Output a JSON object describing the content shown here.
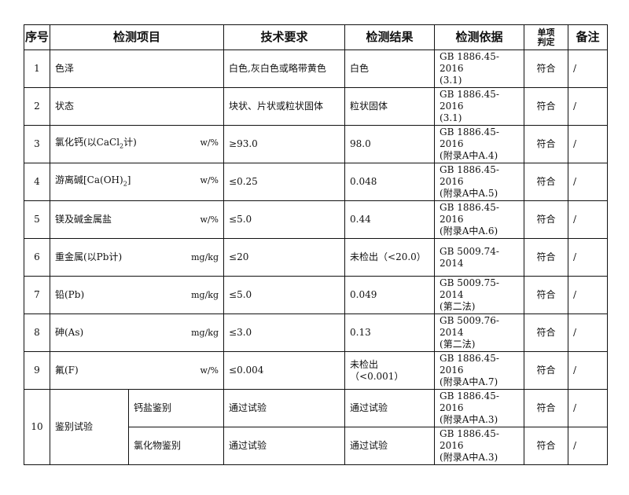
{
  "headers": {
    "no": "序号",
    "item": "检测项目",
    "requirement": "技术要求",
    "result": "检测结果",
    "basis": "检测依据",
    "judgement_l1": "单项",
    "judgement_l2": "判定",
    "remark": "备注"
  },
  "rows": [
    {
      "no": "1",
      "item": {
        "pre": "色泽",
        "sub": "",
        "post": ""
      },
      "unit": "",
      "requirement": "白色,灰白色或略带黄色",
      "result": "白色",
      "basis_l1": "GB 1886.45-2016",
      "basis_l2": "(3.1)",
      "judgement": "符合",
      "remark": "/"
    },
    {
      "no": "2",
      "item": {
        "pre": "状态",
        "sub": "",
        "post": ""
      },
      "unit": "",
      "requirement": "块状、片状或粒状固体",
      "result": "粒状固体",
      "basis_l1": "GB 1886.45-2016",
      "basis_l2": "(3.1)",
      "judgement": "符合",
      "remark": "/"
    },
    {
      "no": "3",
      "item": {
        "pre": "氯化钙(以CaCl",
        "sub": "2",
        "post": "计)"
      },
      "unit": "w/%",
      "requirement": "≥93.0",
      "result": "98.0",
      "basis_l1": "GB 1886.45-2016",
      "basis_l2": "(附录A中A.4)",
      "judgement": "符合",
      "remark": "/"
    },
    {
      "no": "4",
      "item": {
        "pre": "游离碱[Ca(OH)",
        "sub": "2",
        "post": "]"
      },
      "unit": "w/%",
      "requirement": "≤0.25",
      "result": "0.048",
      "basis_l1": "GB 1886.45-2016",
      "basis_l2": "(附录A中A.5)",
      "judgement": "符合",
      "remark": "/"
    },
    {
      "no": "5",
      "item": {
        "pre": "镁及碱金属盐",
        "sub": "",
        "post": ""
      },
      "unit": "w/%",
      "requirement": "≤5.0",
      "result": "0.44",
      "basis_l1": "GB 1886.45-2016",
      "basis_l2": "(附录A中A.6)",
      "judgement": "符合",
      "remark": "/"
    },
    {
      "no": "6",
      "item": {
        "pre": "重金属(以Pb计)",
        "sub": "",
        "post": ""
      },
      "unit": "mg/kg",
      "requirement": "≤20",
      "result": "未检出（<20.0）",
      "basis_l1": "GB 5009.74-2014",
      "basis_l2": "",
      "judgement": "符合",
      "remark": "/"
    },
    {
      "no": "7",
      "item": {
        "pre": "铅(Pb)",
        "sub": "",
        "post": ""
      },
      "unit": "mg/kg",
      "requirement": "≤5.0",
      "result": "0.049",
      "basis_l1": "GB 5009.75-2014",
      "basis_l2": "(第二法)",
      "judgement": "符合",
      "remark": "/"
    },
    {
      "no": "8",
      "item": {
        "pre": "砷(As)",
        "sub": "",
        "post": ""
      },
      "unit": "mg/kg",
      "requirement": "≤3.0",
      "result": "0.13",
      "basis_l1": "GB 5009.76-2014",
      "basis_l2": "(第二法)",
      "judgement": "符合",
      "remark": "/"
    },
    {
      "no": "9",
      "item": {
        "pre": "氟(F)",
        "sub": "",
        "post": ""
      },
      "unit": "w/%",
      "requirement": "≤0.004",
      "result": "未检出",
      "result_l2": "（<0.001）",
      "basis_l1": "GB 1886.45-2016",
      "basis_l2": "(附录A中A.7)",
      "judgement": "符合",
      "remark": "/"
    }
  ],
  "row10": {
    "no": "10",
    "item": "鉴别试验",
    "subs": [
      {
        "name": "钙盐鉴别",
        "requirement": "通过试验",
        "result": "通过试验",
        "basis_l1": "GB 1886.45-2016",
        "basis_l2": "(附录A中A.3)",
        "judgement": "符合",
        "remark": "/"
      },
      {
        "name": "氯化物鉴别",
        "requirement": "通过试验",
        "result": "通过试验",
        "basis_l1": "GB 1886.45-2016",
        "basis_l2": "(附录A中A.3)",
        "judgement": "符合",
        "remark": "/"
      }
    ]
  }
}
